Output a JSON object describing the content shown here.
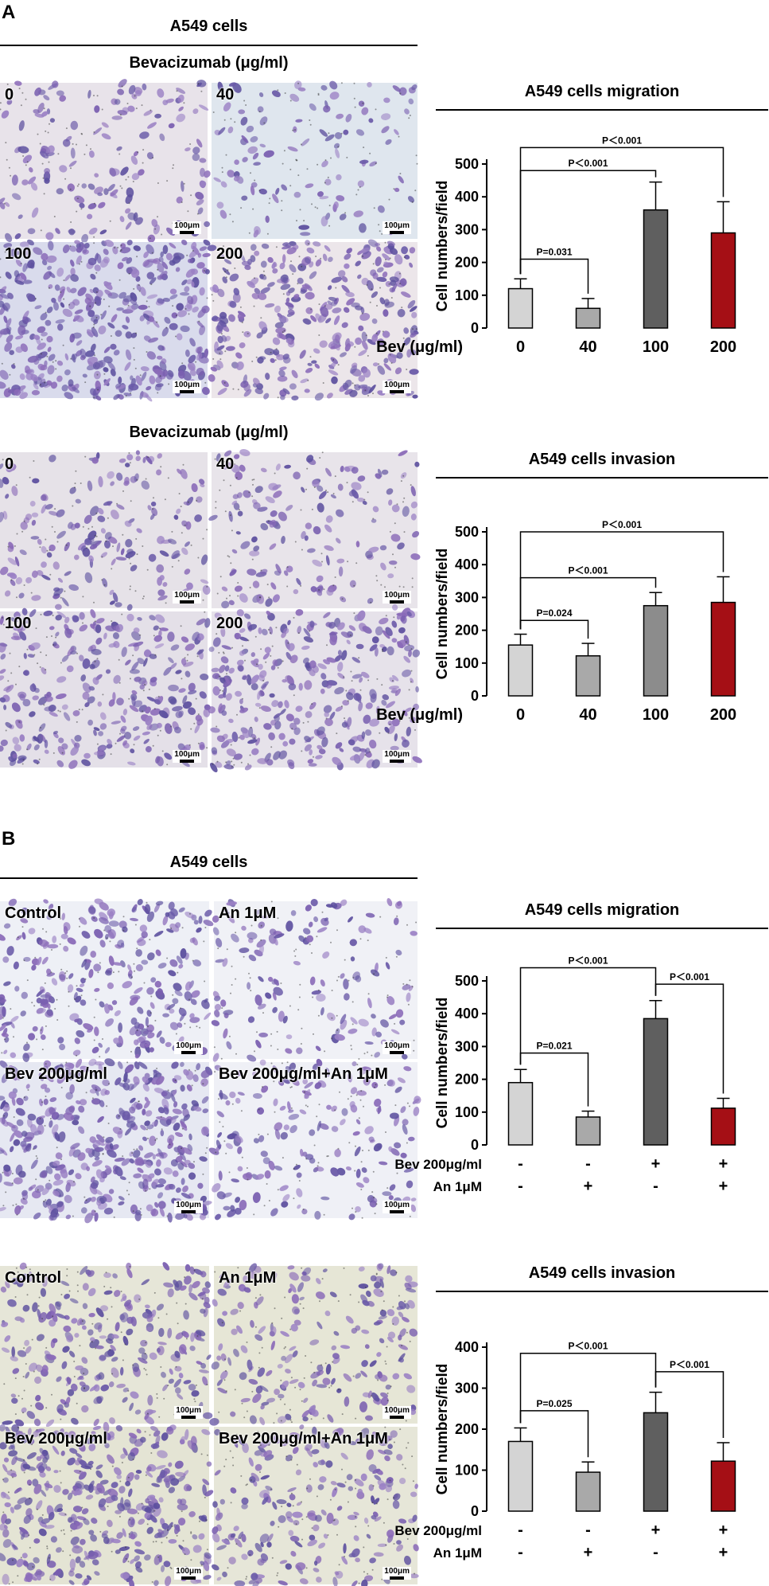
{
  "panelA": {
    "letter": "A",
    "cells_header": "A549 cells",
    "migration": {
      "header": "Bevacizumab (μg/ml)",
      "images": [
        {
          "label": "0",
          "scale": "100μm",
          "density": 0.3,
          "tone": "#e8e3ea"
        },
        {
          "label": "40",
          "scale": "100μm",
          "density": 0.18,
          "tone": "#dfe6ee"
        },
        {
          "label": "100",
          "scale": "100μm",
          "density": 0.95,
          "tone": "#d9dbec"
        },
        {
          "label": "200",
          "scale": "100μm",
          "density": 0.75,
          "tone": "#ece6ea"
        }
      ]
    },
    "invasion": {
      "header": "Bevacizumab (μg/ml)",
      "images": [
        {
          "label": "0",
          "scale": "100μm",
          "density": 0.35,
          "tone": "#e6e2e8"
        },
        {
          "label": "40",
          "scale": "100μm",
          "density": 0.28,
          "tone": "#e8e4ea"
        },
        {
          "label": "100",
          "scale": "100μm",
          "density": 0.65,
          "tone": "#e4e0e8"
        },
        {
          "label": "200",
          "scale": "100μm",
          "density": 0.7,
          "tone": "#e6e2ea"
        }
      ]
    }
  },
  "panelB": {
    "letter": "B",
    "cells_header": "A549 cells",
    "migration": {
      "images": [
        {
          "label": "Control",
          "scale": "100μm",
          "density": 0.6,
          "tone": "#eef0f6"
        },
        {
          "label": "An 1μM",
          "scale": "100μm",
          "density": 0.25,
          "tone": "#f0f1f6"
        },
        {
          "label": "Bev 200μg/ml",
          "scale": "100μm",
          "density": 1.0,
          "tone": "#e6e8f2"
        },
        {
          "label": "Bev 200μg/ml+An 1μM",
          "scale": "100μm",
          "density": 0.35,
          "tone": "#eff0f6"
        }
      ]
    },
    "invasion": {
      "images": [
        {
          "label": "Control",
          "scale": "100μm",
          "density": 0.55,
          "tone": "#e6e6d8"
        },
        {
          "label": "An 1μM",
          "scale": "100μm",
          "density": 0.4,
          "tone": "#e6e6d6"
        },
        {
          "label": "Bev 200μg/ml",
          "scale": "100μm",
          "density": 0.85,
          "tone": "#e4e4d4"
        },
        {
          "label": "Bev 200μg/ml+An 1μM",
          "scale": "100μm",
          "density": 0.45,
          "tone": "#e6e6d8"
        }
      ]
    }
  },
  "chart_data": [
    {
      "type": "bar",
      "title": "A549 cells migration",
      "ylabel": "Cell numbers/field",
      "xlabel": "",
      "ylim": [
        0,
        500
      ],
      "yticks": [
        0,
        100,
        200,
        300,
        400,
        500
      ],
      "row_labels": [
        "Bev (μg/ml)"
      ],
      "categories": [
        [
          "0"
        ],
        [
          "40"
        ],
        [
          "100"
        ],
        [
          "200"
        ]
      ],
      "values": [
        120,
        60,
        360,
        290
      ],
      "errors": [
        30,
        30,
        85,
        95
      ],
      "colors": [
        "#d4d4d4",
        "#a9a9a9",
        "#5f5f5f",
        "#a50f15"
      ],
      "annotations": [
        {
          "from": 0,
          "to": 1,
          "text": "P=0.031",
          "y": 210
        },
        {
          "from": 0,
          "to": 2,
          "text": "P＜0.001",
          "y": 480
        },
        {
          "from": 0,
          "to": 3,
          "text": "P＜0.001",
          "y": 550
        }
      ]
    },
    {
      "type": "bar",
      "title": "A549 cells invasion",
      "ylabel": "Cell numbers/field",
      "xlabel": "",
      "ylim": [
        0,
        500
      ],
      "yticks": [
        0,
        100,
        200,
        300,
        400,
        500
      ],
      "row_labels": [
        "Bev (μg/ml)"
      ],
      "categories": [
        [
          "0"
        ],
        [
          "40"
        ],
        [
          "100"
        ],
        [
          "200"
        ]
      ],
      "values": [
        155,
        122,
        275,
        285
      ],
      "errors": [
        33,
        38,
        40,
        78
      ],
      "colors": [
        "#d4d4d4",
        "#a9a9a9",
        "#8c8c8c",
        "#a50f15"
      ],
      "annotations": [
        {
          "from": 0,
          "to": 1,
          "text": "P=0.024",
          "y": 230
        },
        {
          "from": 0,
          "to": 2,
          "text": "P＜0.001",
          "y": 360
        },
        {
          "from": 0,
          "to": 3,
          "text": "P＜0.001",
          "y": 500
        }
      ]
    },
    {
      "type": "bar",
      "title": "A549 cells migration",
      "ylabel": "Cell numbers/field",
      "xlabel": "",
      "ylim": [
        0,
        500
      ],
      "yticks": [
        0,
        100,
        200,
        300,
        400,
        500
      ],
      "row_labels": [
        "Bev 200μg/ml",
        "An 1μM"
      ],
      "categories": [
        [
          "-",
          "-"
        ],
        [
          "-",
          "+"
        ],
        [
          "+",
          "-"
        ],
        [
          "+",
          "+"
        ]
      ],
      "values": [
        190,
        85,
        385,
        112
      ],
      "errors": [
        40,
        18,
        55,
        30
      ],
      "colors": [
        "#d4d4d4",
        "#a9a9a9",
        "#5f5f5f",
        "#a50f15"
      ],
      "annotations": [
        {
          "from": 0,
          "to": 1,
          "text": "P=0.021",
          "y": 280
        },
        {
          "from": 0,
          "to": 2,
          "text": "P＜0.001",
          "y": 540
        },
        {
          "from": 2,
          "to": 3,
          "text": "P＜0.001",
          "y": 490
        }
      ]
    },
    {
      "type": "bar",
      "title": "A549 cells invasion",
      "ylabel": "Cell numbers/field",
      "xlabel": "",
      "ylim": [
        0,
        400
      ],
      "yticks": [
        0,
        100,
        200,
        300,
        400
      ],
      "row_labels": [
        "Bev 200μg/ml",
        "An 1μM"
      ],
      "categories": [
        [
          "-",
          "-"
        ],
        [
          "-",
          "+"
        ],
        [
          "+",
          "-"
        ],
        [
          "+",
          "+"
        ]
      ],
      "values": [
        170,
        95,
        240,
        122
      ],
      "errors": [
        33,
        25,
        50,
        45
      ],
      "colors": [
        "#d4d4d4",
        "#a9a9a9",
        "#5f5f5f",
        "#a50f15"
      ],
      "annotations": [
        {
          "from": 0,
          "to": 1,
          "text": "P=0.025",
          "y": 245
        },
        {
          "from": 0,
          "to": 2,
          "text": "P＜0.001",
          "y": 385
        },
        {
          "from": 2,
          "to": 3,
          "text": "P＜0.001",
          "y": 340
        }
      ]
    }
  ]
}
